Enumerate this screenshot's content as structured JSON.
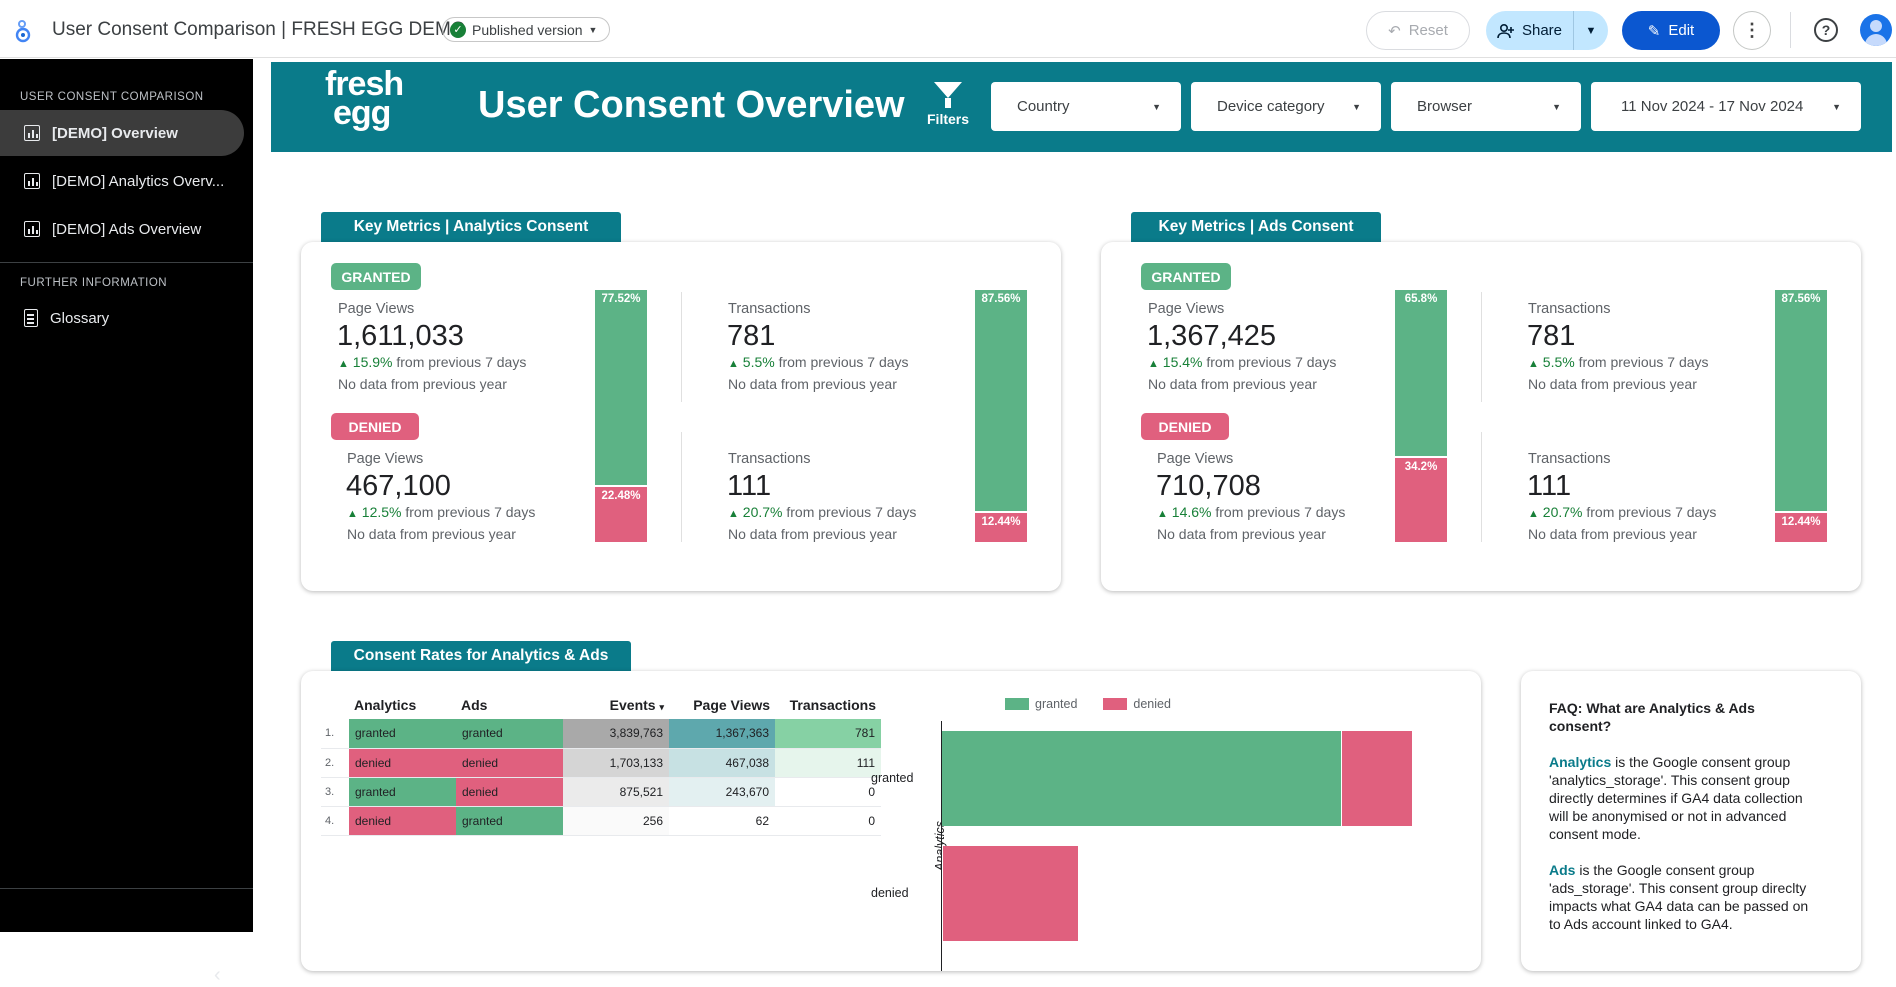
{
  "app": {
    "title": "User Consent Comparison | FRESH EGG DEMO",
    "version_chip": "Published version",
    "reset": "Reset",
    "share": "Share",
    "edit": "Edit"
  },
  "sidebar": {
    "section1": "USER CONSENT COMPARISON",
    "items": [
      "[DEMO] Overview",
      "[DEMO] Analytics Overv...",
      "[DEMO] Ads Overview"
    ],
    "section2": "FURTHER INFORMATION",
    "info_items": [
      "Glossary"
    ]
  },
  "banner": {
    "brand_line1": "fresh",
    "brand_line2": "egg",
    "title": "User Consent Overview",
    "filters_label": "Filters",
    "country": "Country",
    "device": "Device category",
    "browser": "Browser",
    "date_range": "11 Nov 2024 - 17 Nov 2024"
  },
  "colors": {
    "teal": "#0a7b8a",
    "granted": "#5cb386",
    "denied": "#e0607e"
  },
  "analytics": {
    "title": "Key Metrics | Analytics Consent",
    "granted_badge": "GRANTED",
    "denied_badge": "DENIED",
    "g_pv_label": "Page Views",
    "g_pv": "1,611,033",
    "g_pv_pct": "15.9%",
    "g_pv_txt": "from previous 7 days",
    "g_pv_year": "No data from previous year",
    "d_pv_label": "Page Views",
    "d_pv": "467,100",
    "d_pv_pct": "12.5%",
    "d_pv_txt": "from previous 7 days",
    "d_pv_year": "No data from previous year",
    "pv_stack": {
      "granted": 77.52,
      "denied": 22.48,
      "granted_label": "77.52%",
      "denied_label": "22.48%"
    },
    "g_tr_label": "Transactions",
    "g_tr": "781",
    "g_tr_pct": "5.5%",
    "g_tr_txt": "from previous 7 days",
    "g_tr_year": "No data from previous year",
    "d_tr_label": "Transactions",
    "d_tr": "111",
    "d_tr_pct": "20.7%",
    "d_tr_txt": "from previous 7 days",
    "d_tr_year": "No data from previous year",
    "tr_stack": {
      "granted": 87.56,
      "denied": 12.44,
      "granted_label": "87.56%",
      "denied_label": "12.44%"
    }
  },
  "ads": {
    "title": "Key Metrics | Ads Consent",
    "granted_badge": "GRANTED",
    "denied_badge": "DENIED",
    "g_pv_label": "Page Views",
    "g_pv": "1,367,425",
    "g_pv_pct": "15.4%",
    "g_pv_txt": "from previous 7 days",
    "g_pv_year": "No data from previous year",
    "d_pv_label": "Page Views",
    "d_pv": "710,708",
    "d_pv_pct": "14.6%",
    "d_pv_txt": "from previous 7 days",
    "d_pv_year": "No data from previous year",
    "pv_stack": {
      "granted": 65.8,
      "denied": 34.2,
      "granted_label": "65.8%",
      "denied_label": "34.2%"
    },
    "g_tr_label": "Transactions",
    "g_tr": "781",
    "g_tr_pct": "5.5%",
    "g_tr_txt": "from previous 7 days",
    "g_tr_year": "No data from previous year",
    "d_tr_label": "Transactions",
    "d_tr": "111",
    "d_tr_pct": "20.7%",
    "d_tr_txt": "from previous 7 days",
    "d_tr_year": "No data from previous year",
    "tr_stack": {
      "granted": 87.56,
      "denied": 12.44,
      "granted_label": "87.56%",
      "denied_label": "12.44%"
    }
  },
  "rates": {
    "title": "Consent Rates for Analytics & Ads",
    "headers": [
      "Analytics",
      "Ads",
      "Events",
      "Page Views",
      "Transactions"
    ],
    "sort_indicator": "▾",
    "rows": [
      {
        "idx": "1.",
        "analytics": "granted",
        "ads": "granted",
        "events": "3,839,763",
        "pv": "1,367,363",
        "tr": "781"
      },
      {
        "idx": "2.",
        "analytics": "denied",
        "ads": "denied",
        "events": "1,703,133",
        "pv": "467,038",
        "tr": "111"
      },
      {
        "idx": "3.",
        "analytics": "granted",
        "ads": "denied",
        "events": "875,521",
        "pv": "243,670",
        "tr": "0"
      },
      {
        "idx": "4.",
        "analytics": "denied",
        "ads": "granted",
        "events": "256",
        "pv": "62",
        "tr": "0"
      }
    ]
  },
  "chart_data": {
    "type": "bar",
    "orientation": "horizontal",
    "stacked": true,
    "title": "",
    "ylabel": "Analytics",
    "categories": [
      "granted",
      "denied"
    ],
    "series": [
      {
        "name": "granted",
        "values": [
          1367363,
          62
        ]
      },
      {
        "name": "denied",
        "values": [
          243670,
          467038
        ]
      }
    ],
    "legend": [
      "granted",
      "denied"
    ],
    "legend_position": "top"
  },
  "faq": {
    "title": "FAQ: What are Analytics & Ads consent?",
    "analytics_term": "Analytics",
    "analytics_text": " is the Google consent group 'analytics_storage'. This consent group directly determines if GA4 data collection will be anonymised or not in advanced consent mode.",
    "ads_term": "Ads",
    "ads_text": " is the Google consent group 'ads_storage'. This consent group direclty impacts what GA4 data can be passed on to Ads account linked to GA4."
  }
}
